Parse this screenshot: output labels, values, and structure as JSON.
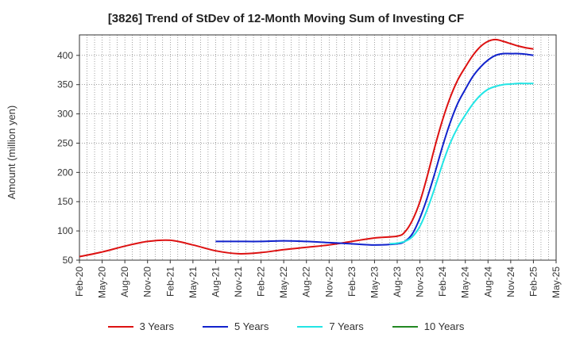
{
  "chart_data": {
    "type": "line",
    "title": "[3826]  Trend of StDev of 12-Month Moving Sum of Investing CF",
    "xlabel": "",
    "ylabel": "Amount (million yen)",
    "ylim": [
      50,
      435
    ],
    "yticks": [
      50,
      100,
      150,
      200,
      250,
      300,
      350,
      400
    ],
    "grid": true,
    "legend_position": "bottom",
    "x_ticks": [
      "Feb-20",
      "May-20",
      "Aug-20",
      "Nov-20",
      "Feb-21",
      "May-21",
      "Aug-21",
      "Nov-21",
      "Feb-22",
      "May-22",
      "Aug-22",
      "Nov-22",
      "Feb-23",
      "May-23",
      "Aug-23",
      "Nov-23",
      "Feb-24",
      "May-24",
      "Aug-24",
      "Nov-24",
      "Feb-25",
      "May-25"
    ],
    "series": [
      {
        "name": "3 Years",
        "color": "#dd1111",
        "points": [
          [
            "Feb-20",
            56
          ],
          [
            "May-20",
            64
          ],
          [
            "Aug-20",
            74
          ],
          [
            "Nov-20",
            82
          ],
          [
            "Feb-21",
            84
          ],
          [
            "May-21",
            76
          ],
          [
            "Aug-21",
            66
          ],
          [
            "Nov-21",
            61
          ],
          [
            "Feb-22",
            63
          ],
          [
            "May-22",
            68
          ],
          [
            "Aug-22",
            72
          ],
          [
            "Nov-22",
            76
          ],
          [
            "Feb-23",
            82
          ],
          [
            "May-23",
            88
          ],
          [
            "Aug-23",
            91
          ],
          [
            "Sep-23",
            98
          ],
          [
            "Oct-23",
            118
          ],
          [
            "Nov-23",
            150
          ],
          [
            "Dec-23",
            195
          ],
          [
            "Jan-24",
            245
          ],
          [
            "Feb-24",
            290
          ],
          [
            "Mar-24",
            328
          ],
          [
            "Apr-24",
            358
          ],
          [
            "May-24",
            380
          ],
          [
            "Jun-24",
            400
          ],
          [
            "Jul-24",
            415
          ],
          [
            "Aug-24",
            424
          ],
          [
            "Sep-24",
            427
          ],
          [
            "Oct-24",
            424
          ],
          [
            "Nov-24",
            420
          ],
          [
            "Dec-24",
            416
          ],
          [
            "Jan-25",
            413
          ],
          [
            "Feb-25",
            411
          ]
        ]
      },
      {
        "name": "5 Years",
        "color": "#1122cc",
        "points": [
          [
            "Aug-21",
            82
          ],
          [
            "Nov-21",
            82
          ],
          [
            "Feb-22",
            82
          ],
          [
            "May-22",
            83
          ],
          [
            "Aug-22",
            82
          ],
          [
            "Nov-22",
            80
          ],
          [
            "Feb-23",
            78
          ],
          [
            "May-23",
            76
          ],
          [
            "Aug-23",
            78
          ],
          [
            "Sep-23",
            82
          ],
          [
            "Oct-23",
            95
          ],
          [
            "Nov-23",
            122
          ],
          [
            "Dec-23",
            158
          ],
          [
            "Jan-24",
            200
          ],
          [
            "Feb-24",
            245
          ],
          [
            "Mar-24",
            285
          ],
          [
            "Apr-24",
            318
          ],
          [
            "May-24",
            342
          ],
          [
            "Jun-24",
            364
          ],
          [
            "Jul-24",
            380
          ],
          [
            "Aug-24",
            392
          ],
          [
            "Sep-24",
            400
          ],
          [
            "Oct-24",
            403
          ],
          [
            "Nov-24",
            403
          ],
          [
            "Dec-24",
            403
          ],
          [
            "Jan-25",
            402
          ],
          [
            "Feb-25",
            400
          ]
        ]
      },
      {
        "name": "7 Years",
        "color": "#22e5e5",
        "points": [
          [
            "Jul-23",
            78
          ],
          [
            "Aug-23",
            79
          ],
          [
            "Sep-23",
            82
          ],
          [
            "Oct-23",
            90
          ],
          [
            "Nov-23",
            108
          ],
          [
            "Dec-23",
            138
          ],
          [
            "Jan-24",
            175
          ],
          [
            "Feb-24",
            215
          ],
          [
            "Mar-24",
            250
          ],
          [
            "Apr-24",
            277
          ],
          [
            "May-24",
            298
          ],
          [
            "Jun-24",
            317
          ],
          [
            "Jul-24",
            332
          ],
          [
            "Aug-24",
            342
          ],
          [
            "Sep-24",
            347
          ],
          [
            "Oct-24",
            350
          ],
          [
            "Nov-24",
            351
          ],
          [
            "Dec-24",
            352
          ],
          [
            "Jan-25",
            352
          ],
          [
            "Feb-25",
            352
          ]
        ]
      },
      {
        "name": "10 Years",
        "color": "#228822",
        "points": []
      }
    ]
  }
}
